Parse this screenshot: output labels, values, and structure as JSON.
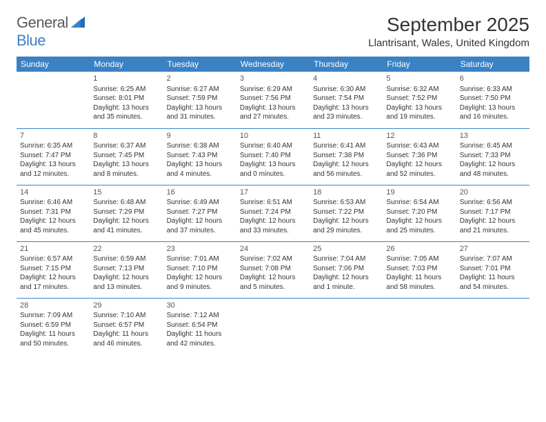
{
  "logo": {
    "general": "General",
    "blue": "Blue"
  },
  "title": "September 2025",
  "location": "Llantrisant, Wales, United Kingdom",
  "colors": {
    "header_bg": "#3b82c4",
    "header_fg": "#ffffff",
    "text": "#333333",
    "logo_gray": "#555a5f",
    "logo_blue": "#3b82c4",
    "background": "#ffffff"
  },
  "day_headers": [
    "Sunday",
    "Monday",
    "Tuesday",
    "Wednesday",
    "Thursday",
    "Friday",
    "Saturday"
  ],
  "weeks": [
    [
      {
        "day": "",
        "sunrise": "",
        "sunset": "",
        "daylight": ""
      },
      {
        "day": "1",
        "sunrise": "Sunrise: 6:25 AM",
        "sunset": "Sunset: 8:01 PM",
        "daylight": "Daylight: 13 hours and 35 minutes."
      },
      {
        "day": "2",
        "sunrise": "Sunrise: 6:27 AM",
        "sunset": "Sunset: 7:59 PM",
        "daylight": "Daylight: 13 hours and 31 minutes."
      },
      {
        "day": "3",
        "sunrise": "Sunrise: 6:29 AM",
        "sunset": "Sunset: 7:56 PM",
        "daylight": "Daylight: 13 hours and 27 minutes."
      },
      {
        "day": "4",
        "sunrise": "Sunrise: 6:30 AM",
        "sunset": "Sunset: 7:54 PM",
        "daylight": "Daylight: 13 hours and 23 minutes."
      },
      {
        "day": "5",
        "sunrise": "Sunrise: 6:32 AM",
        "sunset": "Sunset: 7:52 PM",
        "daylight": "Daylight: 13 hours and 19 minutes."
      },
      {
        "day": "6",
        "sunrise": "Sunrise: 6:33 AM",
        "sunset": "Sunset: 7:50 PM",
        "daylight": "Daylight: 13 hours and 16 minutes."
      }
    ],
    [
      {
        "day": "7",
        "sunrise": "Sunrise: 6:35 AM",
        "sunset": "Sunset: 7:47 PM",
        "daylight": "Daylight: 13 hours and 12 minutes."
      },
      {
        "day": "8",
        "sunrise": "Sunrise: 6:37 AM",
        "sunset": "Sunset: 7:45 PM",
        "daylight": "Daylight: 13 hours and 8 minutes."
      },
      {
        "day": "9",
        "sunrise": "Sunrise: 6:38 AM",
        "sunset": "Sunset: 7:43 PM",
        "daylight": "Daylight: 13 hours and 4 minutes."
      },
      {
        "day": "10",
        "sunrise": "Sunrise: 6:40 AM",
        "sunset": "Sunset: 7:40 PM",
        "daylight": "Daylight: 13 hours and 0 minutes."
      },
      {
        "day": "11",
        "sunrise": "Sunrise: 6:41 AM",
        "sunset": "Sunset: 7:38 PM",
        "daylight": "Daylight: 12 hours and 56 minutes."
      },
      {
        "day": "12",
        "sunrise": "Sunrise: 6:43 AM",
        "sunset": "Sunset: 7:36 PM",
        "daylight": "Daylight: 12 hours and 52 minutes."
      },
      {
        "day": "13",
        "sunrise": "Sunrise: 6:45 AM",
        "sunset": "Sunset: 7:33 PM",
        "daylight": "Daylight: 12 hours and 48 minutes."
      }
    ],
    [
      {
        "day": "14",
        "sunrise": "Sunrise: 6:46 AM",
        "sunset": "Sunset: 7:31 PM",
        "daylight": "Daylight: 12 hours and 45 minutes."
      },
      {
        "day": "15",
        "sunrise": "Sunrise: 6:48 AM",
        "sunset": "Sunset: 7:29 PM",
        "daylight": "Daylight: 12 hours and 41 minutes."
      },
      {
        "day": "16",
        "sunrise": "Sunrise: 6:49 AM",
        "sunset": "Sunset: 7:27 PM",
        "daylight": "Daylight: 12 hours and 37 minutes."
      },
      {
        "day": "17",
        "sunrise": "Sunrise: 6:51 AM",
        "sunset": "Sunset: 7:24 PM",
        "daylight": "Daylight: 12 hours and 33 minutes."
      },
      {
        "day": "18",
        "sunrise": "Sunrise: 6:53 AM",
        "sunset": "Sunset: 7:22 PM",
        "daylight": "Daylight: 12 hours and 29 minutes."
      },
      {
        "day": "19",
        "sunrise": "Sunrise: 6:54 AM",
        "sunset": "Sunset: 7:20 PM",
        "daylight": "Daylight: 12 hours and 25 minutes."
      },
      {
        "day": "20",
        "sunrise": "Sunrise: 6:56 AM",
        "sunset": "Sunset: 7:17 PM",
        "daylight": "Daylight: 12 hours and 21 minutes."
      }
    ],
    [
      {
        "day": "21",
        "sunrise": "Sunrise: 6:57 AM",
        "sunset": "Sunset: 7:15 PM",
        "daylight": "Daylight: 12 hours and 17 minutes."
      },
      {
        "day": "22",
        "sunrise": "Sunrise: 6:59 AM",
        "sunset": "Sunset: 7:13 PM",
        "daylight": "Daylight: 12 hours and 13 minutes."
      },
      {
        "day": "23",
        "sunrise": "Sunrise: 7:01 AM",
        "sunset": "Sunset: 7:10 PM",
        "daylight": "Daylight: 12 hours and 9 minutes."
      },
      {
        "day": "24",
        "sunrise": "Sunrise: 7:02 AM",
        "sunset": "Sunset: 7:08 PM",
        "daylight": "Daylight: 12 hours and 5 minutes."
      },
      {
        "day": "25",
        "sunrise": "Sunrise: 7:04 AM",
        "sunset": "Sunset: 7:06 PM",
        "daylight": "Daylight: 12 hours and 1 minute."
      },
      {
        "day": "26",
        "sunrise": "Sunrise: 7:05 AM",
        "sunset": "Sunset: 7:03 PM",
        "daylight": "Daylight: 11 hours and 58 minutes."
      },
      {
        "day": "27",
        "sunrise": "Sunrise: 7:07 AM",
        "sunset": "Sunset: 7:01 PM",
        "daylight": "Daylight: 11 hours and 54 minutes."
      }
    ],
    [
      {
        "day": "28",
        "sunrise": "Sunrise: 7:09 AM",
        "sunset": "Sunset: 6:59 PM",
        "daylight": "Daylight: 11 hours and 50 minutes."
      },
      {
        "day": "29",
        "sunrise": "Sunrise: 7:10 AM",
        "sunset": "Sunset: 6:57 PM",
        "daylight": "Daylight: 11 hours and 46 minutes."
      },
      {
        "day": "30",
        "sunrise": "Sunrise: 7:12 AM",
        "sunset": "Sunset: 6:54 PM",
        "daylight": "Daylight: 11 hours and 42 minutes."
      },
      {
        "day": "",
        "sunrise": "",
        "sunset": "",
        "daylight": ""
      },
      {
        "day": "",
        "sunrise": "",
        "sunset": "",
        "daylight": ""
      },
      {
        "day": "",
        "sunrise": "",
        "sunset": "",
        "daylight": ""
      },
      {
        "day": "",
        "sunrise": "",
        "sunset": "",
        "daylight": ""
      }
    ]
  ]
}
